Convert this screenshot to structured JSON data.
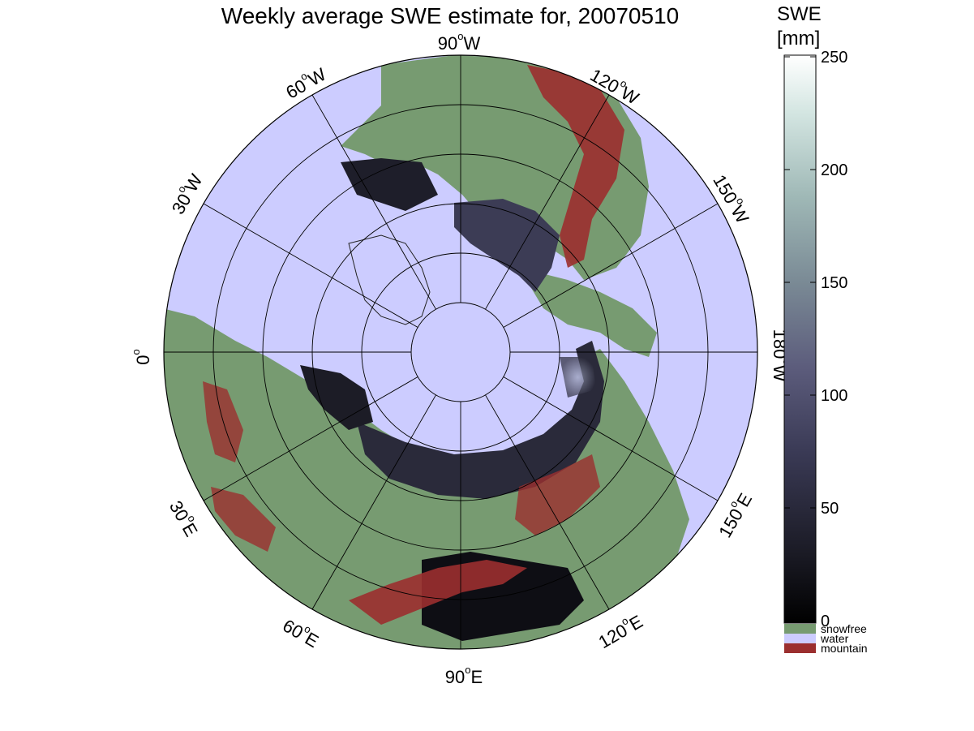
{
  "title": "Weekly average SWE estimate for, 20070510",
  "map": {
    "projection": "polar stereographic, north pole",
    "longitude_labels": [
      {
        "name": "lon-90w",
        "deg": "90",
        "hemi": "W"
      },
      {
        "name": "lon-120w",
        "deg": "120",
        "hemi": "W"
      },
      {
        "name": "lon-150w",
        "deg": "150",
        "hemi": "W"
      },
      {
        "name": "lon-180w",
        "deg": "180",
        "hemi": "W"
      },
      {
        "name": "lon-150e",
        "deg": "150",
        "hemi": "E"
      },
      {
        "name": "lon-120e",
        "deg": "120",
        "hemi": "E"
      },
      {
        "name": "lon-90e",
        "deg": "90",
        "hemi": "E"
      },
      {
        "name": "lon-60e",
        "deg": "60",
        "hemi": "E"
      },
      {
        "name": "lon-30e",
        "deg": "30",
        "hemi": "E"
      },
      {
        "name": "lon-0",
        "deg": "0",
        "hemi": ""
      },
      {
        "name": "lon-30w",
        "deg": "30",
        "hemi": "W"
      },
      {
        "name": "lon-60w",
        "deg": "60",
        "hemi": "W"
      }
    ],
    "colors": {
      "water": "#ccccff",
      "snowfree": "#779b71",
      "mountain": "#9b2f2f",
      "snow_low": "#0c0b10",
      "snow_mid": "#5a5a7a",
      "snow_high": "#e8f2f0"
    }
  },
  "colorbar": {
    "title_line1": "SWE",
    "title_line2": "[mm]",
    "ticks": [
      "0",
      "50",
      "100",
      "150",
      "200",
      "250"
    ],
    "range": [
      0,
      250
    ],
    "legend": [
      {
        "name": "snowfree",
        "label": "snowfree",
        "color": "#779b71"
      },
      {
        "name": "water",
        "label": "water",
        "color": "#ccccff"
      },
      {
        "name": "mountain",
        "label": "mountain",
        "color": "#9b2f2f"
      }
    ]
  }
}
